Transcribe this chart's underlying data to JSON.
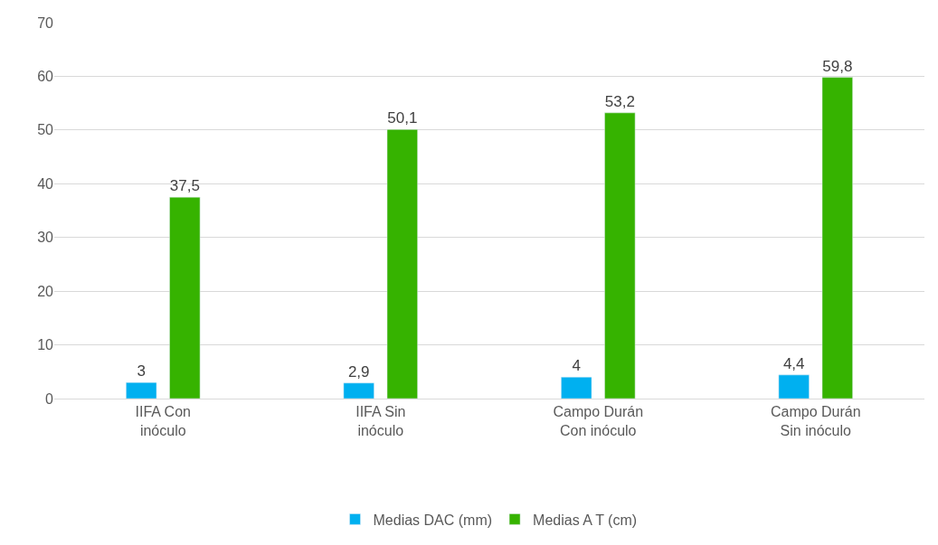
{
  "chart_data": {
    "type": "bar",
    "categories": [
      "IIFA Con inóculo",
      "IIFA Sin inóculo",
      "Campo Durán Con inóculo",
      "Campo Durán Sin inóculo"
    ],
    "series": [
      {
        "name": "Medias DAC (mm)",
        "color": "#00b0f0",
        "values": [
          3,
          2.9,
          4,
          4.4
        ],
        "value_labels": [
          "3",
          "2,9",
          "4",
          "4,4"
        ]
      },
      {
        "name": "Medias A T (cm)",
        "color": "#36b300",
        "values": [
          37.5,
          50.1,
          53.2,
          59.8
        ],
        "value_labels": [
          "37,5",
          "50,1",
          "53,2",
          "59,8"
        ]
      }
    ],
    "ylim": [
      0,
      70
    ],
    "yticks": [
      0,
      10,
      20,
      30,
      40,
      50,
      60,
      70
    ],
    "grid": "y",
    "legend": "bottom"
  }
}
